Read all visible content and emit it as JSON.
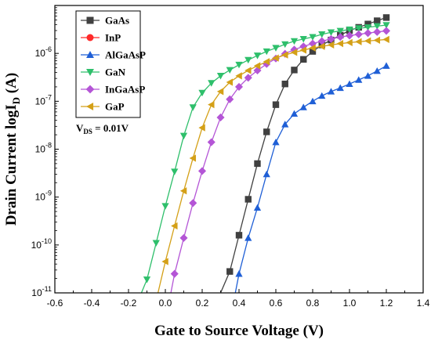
{
  "chart_data": {
    "type": "line",
    "xlabel": "Gate to Source Voltage (V)",
    "ylabel_main": "Drain Current logI",
    "ylabel_sub": "D",
    "ylabel_unit": " (A)",
    "xlim": [
      -0.6,
      1.4
    ],
    "ylim_log": [
      1e-11,
      1e-05
    ],
    "y_scale": "log",
    "x_ticks": [
      "-0.6",
      "-0.4",
      "-0.2",
      "0.0",
      "0.2",
      "0.4",
      "0.6",
      "0.8",
      "1.0",
      "1.2",
      "1.4"
    ],
    "y_ticks": [
      {
        "base": "10",
        "exp": "-11",
        "value": 1e-11
      },
      {
        "base": "10",
        "exp": "-10",
        "value": 1e-10
      },
      {
        "base": "10",
        "exp": "-9",
        "value": 1e-09
      },
      {
        "base": "10",
        "exp": "-8",
        "value": 1e-08
      },
      {
        "base": "10",
        "exp": "-7",
        "value": 1e-07
      },
      {
        "base": "10",
        "exp": "-6",
        "value": 1e-06
      }
    ],
    "annotation": {
      "main": "V",
      "sub": "DS",
      "rest": " = 0.01V"
    },
    "legend_position": "top-left",
    "series": [
      {
        "name": "GaAs",
        "color": "#404040",
        "marker": "square",
        "points": [
          [
            0.3,
            1e-11
          ],
          [
            0.35,
            2.8e-11
          ],
          [
            0.4,
            1.6e-10
          ],
          [
            0.45,
            9e-10
          ],
          [
            0.5,
            5e-09
          ],
          [
            0.55,
            2.3e-08
          ],
          [
            0.6,
            8.5e-08
          ],
          [
            0.65,
            2.3e-07
          ],
          [
            0.7,
            4.5e-07
          ],
          [
            0.75,
            7.5e-07
          ],
          [
            0.8,
            1.1e-06
          ],
          [
            0.85,
            1.5e-06
          ],
          [
            0.9,
            1.9e-06
          ],
          [
            0.95,
            2.4e-06
          ],
          [
            1.0,
            3e-06
          ],
          [
            1.05,
            3.5e-06
          ],
          [
            1.1,
            4.1e-06
          ],
          [
            1.15,
            4.8e-06
          ],
          [
            1.2,
            5.6e-06
          ]
        ]
      },
      {
        "name": "InP",
        "color": "#ff2a2a",
        "marker": "circle",
        "points": []
      },
      {
        "name": "AlGaAsP",
        "color": "#1f5fd6",
        "marker": "triangle-up",
        "points": [
          [
            0.38,
            1e-11
          ],
          [
            0.4,
            2.5e-11
          ],
          [
            0.45,
            1.4e-10
          ],
          [
            0.5,
            6e-10
          ],
          [
            0.55,
            3e-09
          ],
          [
            0.6,
            1.4e-08
          ],
          [
            0.65,
            3.3e-08
          ],
          [
            0.7,
            5.5e-08
          ],
          [
            0.75,
            7.5e-08
          ],
          [
            0.8,
            1e-07
          ],
          [
            0.85,
            1.3e-07
          ],
          [
            0.9,
            1.6e-07
          ],
          [
            0.95,
            1.9e-07
          ],
          [
            1.0,
            2.3e-07
          ],
          [
            1.05,
            2.8e-07
          ],
          [
            1.1,
            3.4e-07
          ],
          [
            1.15,
            4.3e-07
          ],
          [
            1.2,
            5.5e-07
          ]
        ]
      },
      {
        "name": "GaN",
        "color": "#2ebf6b",
        "marker": "triangle-down",
        "points": [
          [
            -0.13,
            1e-11
          ],
          [
            -0.1,
            1.9e-11
          ],
          [
            -0.05,
            1.1e-10
          ],
          [
            0.0,
            6.5e-10
          ],
          [
            0.05,
            3.4e-09
          ],
          [
            0.1,
            1.9e-08
          ],
          [
            0.15,
            7.5e-08
          ],
          [
            0.2,
            1.5e-07
          ],
          [
            0.25,
            2.4e-07
          ],
          [
            0.3,
            3.4e-07
          ],
          [
            0.35,
            4.5e-07
          ],
          [
            0.4,
            5.8e-07
          ],
          [
            0.45,
            7.3e-07
          ],
          [
            0.5,
            9e-07
          ],
          [
            0.55,
            1.1e-06
          ],
          [
            0.6,
            1.3e-06
          ],
          [
            0.65,
            1.55e-06
          ],
          [
            0.7,
            1.8e-06
          ],
          [
            0.75,
            2e-06
          ],
          [
            0.8,
            2.2e-06
          ],
          [
            0.85,
            2.5e-06
          ],
          [
            0.9,
            2.75e-06
          ],
          [
            0.95,
            2.95e-06
          ],
          [
            1.0,
            3.15e-06
          ],
          [
            1.05,
            3.35e-06
          ],
          [
            1.1,
            3.5e-06
          ],
          [
            1.15,
            3.7e-06
          ],
          [
            1.2,
            3.9e-06
          ]
        ]
      },
      {
        "name": "InGaAsP",
        "color": "#b455d6",
        "marker": "diamond",
        "points": [
          [
            0.03,
            1e-11
          ],
          [
            0.05,
            2.5e-11
          ],
          [
            0.1,
            1.4e-10
          ],
          [
            0.15,
            7.5e-10
          ],
          [
            0.2,
            3.5e-09
          ],
          [
            0.25,
            1.4e-08
          ],
          [
            0.3,
            4.6e-08
          ],
          [
            0.35,
            1.1e-07
          ],
          [
            0.4,
            2e-07
          ],
          [
            0.45,
            3.1e-07
          ],
          [
            0.5,
            4.4e-07
          ],
          [
            0.55,
            6e-07
          ],
          [
            0.6,
            7.8e-07
          ],
          [
            0.65,
            9.8e-07
          ],
          [
            0.7,
            1.2e-06
          ],
          [
            0.75,
            1.4e-06
          ],
          [
            0.8,
            1.6e-06
          ],
          [
            0.85,
            1.8e-06
          ],
          [
            0.9,
            2e-06
          ],
          [
            0.95,
            2.2e-06
          ],
          [
            1.0,
            2.35e-06
          ],
          [
            1.05,
            2.5e-06
          ],
          [
            1.1,
            2.65e-06
          ],
          [
            1.15,
            2.8e-06
          ],
          [
            1.2,
            2.95e-06
          ]
        ]
      },
      {
        "name": "GaP",
        "color": "#d4a017",
        "marker": "triangle-left",
        "points": [
          [
            -0.04,
            1e-11
          ],
          [
            0.0,
            4.5e-11
          ],
          [
            0.05,
            2.5e-10
          ],
          [
            0.1,
            1.35e-09
          ],
          [
            0.15,
            6.5e-09
          ],
          [
            0.2,
            2.8e-08
          ],
          [
            0.25,
            8.5e-08
          ],
          [
            0.3,
            1.6e-07
          ],
          [
            0.35,
            2.5e-07
          ],
          [
            0.4,
            3.4e-07
          ],
          [
            0.45,
            4.4e-07
          ],
          [
            0.5,
            5.5e-07
          ],
          [
            0.55,
            6.7e-07
          ],
          [
            0.6,
            8e-07
          ],
          [
            0.65,
            9.3e-07
          ],
          [
            0.7,
            1.05e-06
          ],
          [
            0.75,
            1.17e-06
          ],
          [
            0.8,
            1.3e-06
          ],
          [
            0.85,
            1.4e-06
          ],
          [
            0.9,
            1.5e-06
          ],
          [
            0.95,
            1.6e-06
          ],
          [
            1.0,
            1.68e-06
          ],
          [
            1.05,
            1.75e-06
          ],
          [
            1.1,
            1.82e-06
          ],
          [
            1.15,
            1.88e-06
          ],
          [
            1.2,
            1.95e-06
          ]
        ]
      }
    ]
  }
}
